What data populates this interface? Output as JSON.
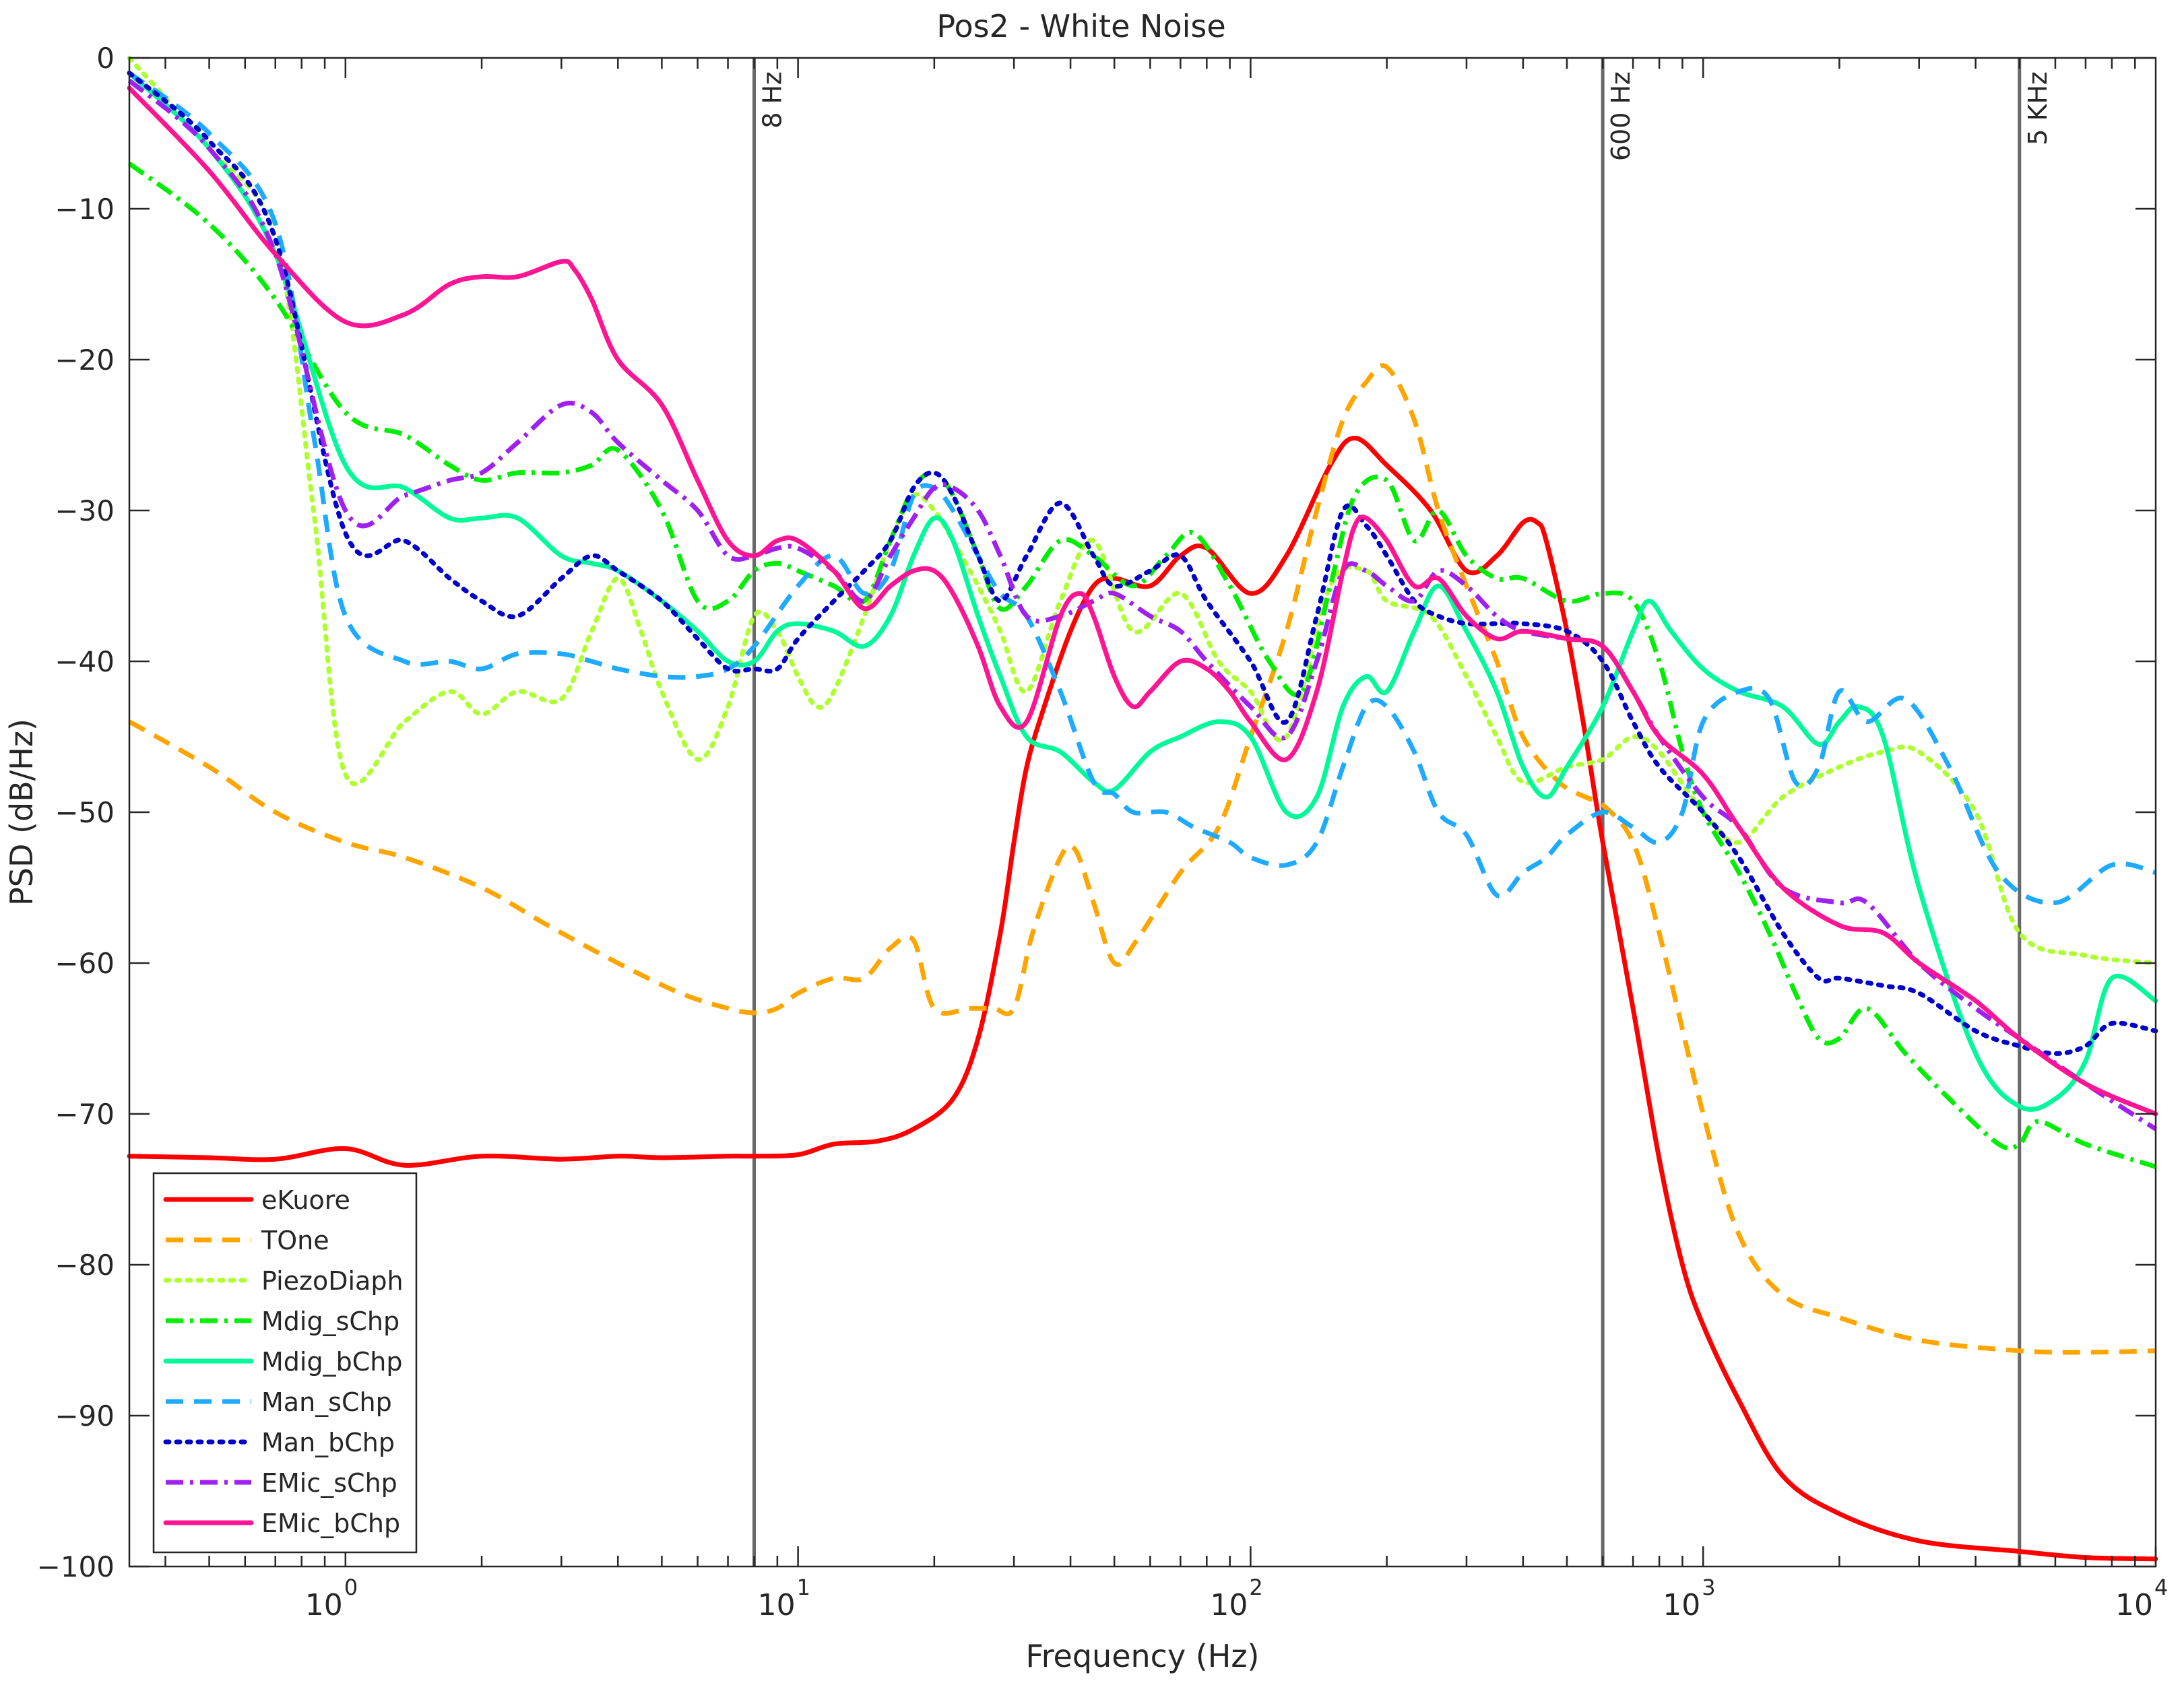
{
  "chart_data": {
    "type": "line",
    "title": "Pos2 - White Noise",
    "xlabel": "Frequency (Hz)",
    "ylabel": "PSD (dB/Hz)",
    "xscale": "log",
    "xlim": [
      0.333,
      10000
    ],
    "ylim": [
      -100,
      0
    ],
    "x_ticks": [
      {
        "value": 1,
        "base": "10",
        "exp": "0"
      },
      {
        "value": 10,
        "base": "10",
        "exp": "1"
      },
      {
        "value": 100,
        "base": "10",
        "exp": "2"
      },
      {
        "value": 1000,
        "base": "10",
        "exp": "3"
      },
      {
        "value": 10000,
        "base": "10",
        "exp": "4"
      }
    ],
    "y_ticks": [
      {
        "value": 0,
        "label": "0"
      },
      {
        "value": -10,
        "label": "−10"
      },
      {
        "value": -20,
        "label": "−20"
      },
      {
        "value": -30,
        "label": "−30"
      },
      {
        "value": -40,
        "label": "−40"
      },
      {
        "value": -50,
        "label": "−50"
      },
      {
        "value": -60,
        "label": "−60"
      },
      {
        "value": -70,
        "label": "−70"
      },
      {
        "value": -80,
        "label": "−80"
      },
      {
        "value": -90,
        "label": "−90"
      },
      {
        "value": -100,
        "label": "−100"
      }
    ],
    "grid": false,
    "legend_position": "bottom-left",
    "vlines": [
      {
        "x": 8,
        "label": "8 Hz"
      },
      {
        "x": 600,
        "label": "600 Hz"
      },
      {
        "x": 5000,
        "label": "5 KHz"
      }
    ],
    "series": [
      {
        "name": "eKuore",
        "color": "#ff0000",
        "dash": "solid",
        "x": [
          0.333,
          0.5,
          0.7,
          1,
          1.35,
          2,
          3,
          4,
          5,
          7,
          8,
          10,
          12,
          15,
          18,
          22,
          25,
          28,
          30,
          32,
          35,
          40,
          45,
          50,
          60,
          70,
          80,
          100,
          120,
          150,
          170,
          200,
          250,
          300,
          350,
          400,
          430,
          450,
          500,
          550,
          600,
          700,
          800,
          900,
          1000,
          1200,
          1500,
          2000,
          3000,
          5000,
          7000,
          10000
        ],
        "y": [
          -72.8,
          -72.9,
          -73,
          -72.3,
          -73.4,
          -72.8,
          -73,
          -72.8,
          -72.9,
          -72.8,
          -72.8,
          -72.7,
          -72,
          -71.8,
          -71,
          -69,
          -65,
          -58,
          -52,
          -47,
          -43,
          -38,
          -35,
          -34.5,
          -35,
          -33,
          -32.5,
          -35.5,
          -33,
          -27,
          -25.2,
          -27,
          -30,
          -34,
          -33,
          -30.8,
          -30.8,
          -32,
          -38,
          -45,
          -52,
          -63,
          -73,
          -80,
          -84,
          -89,
          -94,
          -96.5,
          -98.3,
          -99,
          -99.4,
          -99.5
        ]
      },
      {
        "name": "TOne",
        "color": "#ffa500",
        "dash": "dashed",
        "x": [
          0.333,
          0.5,
          0.7,
          1,
          1.35,
          2,
          2.8,
          4,
          5.5,
          7,
          8,
          9,
          10,
          12,
          14,
          16,
          18,
          20,
          24,
          27,
          30,
          33,
          38,
          41,
          45,
          50,
          56,
          70,
          85,
          100,
          120,
          140,
          160,
          180,
          200,
          230,
          260,
          300,
          350,
          400,
          480,
          550,
          600,
          700,
          800,
          1000,
          1200,
          1500,
          2000,
          3000,
          5000,
          7000,
          10000
        ],
        "y": [
          -44,
          -47,
          -50,
          -52,
          -53,
          -55,
          -57.5,
          -60,
          -62,
          -63,
          -63.3,
          -63,
          -62,
          -61,
          -61,
          -59,
          -58.5,
          -63,
          -63,
          -63,
          -63,
          -58,
          -53,
          -52.5,
          -56,
          -60,
          -58.5,
          -54,
          -51,
          -45,
          -38,
          -30,
          -24,
          -21.5,
          -20.5,
          -24,
          -30,
          -35,
          -40,
          -45,
          -48,
          -49,
          -49.5,
          -52,
          -58,
          -70,
          -78,
          -82,
          -83.5,
          -85,
          -85.7,
          -85.8,
          -85.7
        ]
      },
      {
        "name": "PiezoDiaph",
        "color": "#adff2f",
        "dash": "dotted",
        "x": [
          0.333,
          0.5,
          0.7,
          0.85,
          1,
          1.35,
          1.7,
          2,
          2.4,
          3,
          3.5,
          4,
          4.5,
          5,
          6,
          7,
          8,
          9,
          10,
          11,
          12,
          14,
          16,
          18,
          20,
          22,
          25,
          28,
          32,
          38,
          45,
          55,
          70,
          85,
          100,
          120,
          150,
          180,
          200,
          250,
          300,
          350,
          400,
          500,
          600,
          700,
          800,
          1000,
          1200,
          1500,
          2000,
          2500,
          3000,
          4000,
          5000,
          7000,
          10000
        ],
        "y": [
          0,
          -6,
          -12,
          -30,
          -47.5,
          -44,
          -42,
          -43.5,
          -42,
          -42.5,
          -38,
          -34.5,
          -38,
          -42,
          -46.5,
          -43,
          -37,
          -38,
          -41,
          -43,
          -42,
          -37,
          -32,
          -29,
          -30,
          -32,
          -35,
          -38,
          -42,
          -36,
          -32,
          -38,
          -35.5,
          -40,
          -42,
          -45,
          -35,
          -34,
          -36,
          -37,
          -41,
          -45,
          -48,
          -47,
          -46.5,
          -45,
          -46,
          -50,
          -52,
          -49,
          -47,
          -46,
          -46,
          -50,
          -58,
          -59.5,
          -60
        ]
      },
      {
        "name": "Mdig_sChp",
        "color": "#00ee00",
        "dash": "dashdot",
        "x": [
          0.333,
          0.5,
          0.7,
          1,
          1.35,
          1.7,
          2,
          2.4,
          3,
          3.5,
          4,
          5,
          6,
          7,
          8,
          9,
          10,
          12,
          14,
          16,
          18,
          20,
          22,
          25,
          28,
          32,
          38,
          45,
          55,
          65,
          75,
          90,
          110,
          130,
          150,
          170,
          200,
          230,
          260,
          300,
          350,
          400,
          500,
          600,
          700,
          800,
          900,
          1000,
          1200,
          1400,
          1600,
          1800,
          2000,
          2300,
          2800,
          3500,
          4500,
          5000,
          5500,
          7000,
          10000
        ],
        "y": [
          -7,
          -11,
          -16,
          -23.5,
          -25,
          -27,
          -28,
          -27.5,
          -27.5,
          -27,
          -26,
          -30,
          -36,
          -36,
          -34,
          -33.5,
          -34,
          -35,
          -36,
          -32,
          -28.5,
          -27.5,
          -29,
          -33,
          -36.5,
          -35,
          -32,
          -33,
          -35,
          -33,
          -31.5,
          -35,
          -40,
          -42,
          -35,
          -29,
          -28,
          -32,
          -30,
          -33,
          -34.5,
          -34.5,
          -36,
          -35.5,
          -36,
          -40,
          -46,
          -50,
          -54,
          -58,
          -62,
          -65,
          -65,
          -63,
          -66,
          -69,
          -72,
          -72,
          -70.5,
          -72,
          -73.5
        ]
      },
      {
        "name": "Mdig_bChp",
        "color": "#00fa9a",
        "dash": "solid",
        "x": [
          0.333,
          0.5,
          0.7,
          1,
          1.35,
          1.7,
          2,
          2.4,
          3,
          3.5,
          4,
          5,
          6,
          7,
          8,
          9,
          10,
          12,
          14,
          16,
          18,
          20,
          22,
          25,
          28,
          32,
          38,
          45,
          50,
          60,
          70,
          85,
          100,
          120,
          140,
          160,
          180,
          200,
          230,
          260,
          300,
          350,
          400,
          450,
          500,
          600,
          700,
          760,
          850,
          1000,
          1200,
          1500,
          1800,
          2000,
          2200,
          2500,
          3000,
          4000,
          5000,
          6000,
          7000,
          8000,
          10000
        ],
        "y": [
          -1,
          -6,
          -13,
          -27,
          -28.5,
          -30.5,
          -30.5,
          -30.5,
          -33,
          -33.5,
          -34,
          -36,
          -38,
          -40,
          -40,
          -38,
          -37.5,
          -38,
          -39,
          -37,
          -33,
          -30.5,
          -32,
          -37,
          -41,
          -45,
          -46,
          -48,
          -48.5,
          -46,
          -45,
          -44,
          -45,
          -50,
          -49,
          -43,
          -41,
          -42,
          -38,
          -35,
          -38,
          -42,
          -47,
          -49,
          -47,
          -43,
          -38,
          -36,
          -38,
          -40.5,
          -42,
          -43,
          -45.5,
          -44,
          -43,
          -45,
          -55,
          -66,
          -69.5,
          -69,
          -66.5,
          -61,
          -62.5
        ]
      },
      {
        "name": "Man_sChp",
        "color": "#1eaaff",
        "dash": "dashed",
        "x": [
          0.333,
          0.5,
          0.7,
          0.85,
          1,
          1.35,
          1.7,
          2,
          2.4,
          3,
          3.5,
          4,
          5,
          6,
          7,
          8,
          10,
          12,
          14,
          16,
          18,
          20,
          22,
          25,
          28,
          32,
          38,
          45,
          50,
          55,
          65,
          75,
          90,
          100,
          120,
          140,
          160,
          180,
          200,
          230,
          260,
          300,
          350,
          400,
          450,
          500,
          600,
          700,
          800,
          900,
          1000,
          1200,
          1400,
          1600,
          1800,
          2000,
          2300,
          2800,
          3500,
          4500,
          6000,
          8000,
          10000
        ],
        "y": [
          -1,
          -5,
          -11,
          -25,
          -37,
          -40,
          -40,
          -40.5,
          -39.5,
          -39.5,
          -40,
          -40.5,
          -41,
          -41,
          -40.5,
          -39,
          -35,
          -33,
          -35.5,
          -34,
          -29,
          -28.5,
          -30,
          -33,
          -35.5,
          -37,
          -42,
          -48,
          -48.8,
          -50,
          -50,
          -51,
          -52,
          -53,
          -53.5,
          -52,
          -47,
          -43,
          -43,
          -46,
          -50,
          -51.5,
          -55.5,
          -54,
          -53,
          -51.5,
          -50,
          -51,
          -52,
          -50,
          -44,
          -42,
          -42.5,
          -48,
          -47,
          -42,
          -44,
          -42.5,
          -47,
          -54,
          -56,
          -53.5,
          -54
        ]
      },
      {
        "name": "Man_bChp",
        "color": "#0000cd",
        "dash": "dotted",
        "x": [
          0.333,
          0.5,
          0.7,
          1,
          1.35,
          1.7,
          2,
          2.4,
          3,
          3.5,
          4,
          5,
          6,
          7,
          8,
          9,
          10,
          12,
          14,
          16,
          18,
          20,
          22,
          25,
          28,
          32,
          38,
          45,
          50,
          60,
          70,
          80,
          100,
          120,
          140,
          160,
          180,
          200,
          230,
          260,
          300,
          350,
          400,
          500,
          600,
          700,
          800,
          1000,
          1200,
          1500,
          1800,
          2000,
          2500,
          3000,
          4000,
          5000,
          6000,
          7000,
          8000,
          10000
        ],
        "y": [
          -1,
          -5.5,
          -12,
          -31.5,
          -32,
          -34.5,
          -36,
          -37,
          -34.5,
          -33,
          -34,
          -36,
          -38.5,
          -40.5,
          -40.5,
          -40.5,
          -38.5,
          -36,
          -34,
          -32,
          -28.5,
          -27.5,
          -29,
          -33,
          -36,
          -33,
          -29.5,
          -33,
          -35,
          -34,
          -33,
          -36,
          -40,
          -44,
          -37,
          -30,
          -31,
          -33,
          -36,
          -37,
          -37.5,
          -37.5,
          -37.5,
          -38,
          -40,
          -44,
          -47,
          -50,
          -53,
          -58,
          -61,
          -61,
          -61.5,
          -62,
          -64.5,
          -65.5,
          -66,
          -65.5,
          -64,
          -64.5
        ]
      },
      {
        "name": "EMic_sChp",
        "color": "#a020f0",
        "dash": "dashdot",
        "x": [
          0.333,
          0.5,
          0.7,
          1,
          1.35,
          1.7,
          2,
          2.4,
          3,
          3.5,
          4,
          5,
          6,
          7,
          8,
          9,
          10,
          12,
          14,
          16,
          18,
          20,
          22,
          25,
          28,
          32,
          38,
          45,
          50,
          60,
          70,
          80,
          100,
          120,
          140,
          160,
          180,
          200,
          230,
          260,
          300,
          350,
          400,
          500,
          600,
          700,
          800,
          1000,
          1200,
          1500,
          2000,
          2300,
          3000,
          4000,
          5000,
          7000,
          10000
        ],
        "y": [
          -1.5,
          -6,
          -13,
          -30,
          -29,
          -28,
          -27.5,
          -25.5,
          -23,
          -23.5,
          -25.5,
          -28,
          -30,
          -33,
          -33,
          -32.5,
          -32.5,
          -34,
          -36,
          -33,
          -30.5,
          -28.5,
          -28.5,
          -30,
          -33,
          -37,
          -37,
          -36,
          -35.5,
          -37,
          -38,
          -40,
          -43,
          -45,
          -40,
          -34,
          -34,
          -35,
          -36,
          -34,
          -35,
          -37,
          -38,
          -38.5,
          -39,
          -42,
          -45,
          -49,
          -51,
          -55,
          -56,
          -56,
          -60,
          -63,
          -65,
          -68,
          -71
        ]
      },
      {
        "name": "EMic_bChp",
        "color": "#ff1493",
        "dash": "solid",
        "x": [
          0.333,
          0.5,
          0.7,
          1,
          1.35,
          1.7,
          2,
          2.4,
          3,
          3.2,
          3.5,
          4,
          5,
          6,
          7,
          8,
          9,
          10,
          12,
          14,
          16,
          18,
          20,
          22,
          25,
          28,
          32,
          38,
          42,
          45,
          50,
          55,
          60,
          70,
          80,
          90,
          100,
          120,
          140,
          160,
          170,
          180,
          200,
          230,
          260,
          300,
          350,
          400,
          500,
          600,
          700,
          800,
          1000,
          1200,
          1500,
          2000,
          2500,
          3000,
          4000,
          5000,
          7000,
          10000
        ],
        "y": [
          -2,
          -7.5,
          -13,
          -17.5,
          -17,
          -15,
          -14.5,
          -14.5,
          -13.5,
          -14,
          -16,
          -20,
          -23,
          -28,
          -32,
          -33,
          -32,
          -32,
          -34,
          -36.5,
          -35,
          -34,
          -34,
          -35.5,
          -39,
          -43,
          -44,
          -37,
          -35.5,
          -37,
          -41,
          -43,
          -42,
          -40,
          -40.5,
          -42,
          -44,
          -46.5,
          -42,
          -34,
          -31,
          -30.5,
          -32,
          -35,
          -34.5,
          -37,
          -38.5,
          -38,
          -38.5,
          -39,
          -42,
          -45,
          -47.5,
          -51,
          -55,
          -57.5,
          -58,
          -60,
          -62.5,
          -65,
          -68,
          -70
        ]
      }
    ]
  }
}
